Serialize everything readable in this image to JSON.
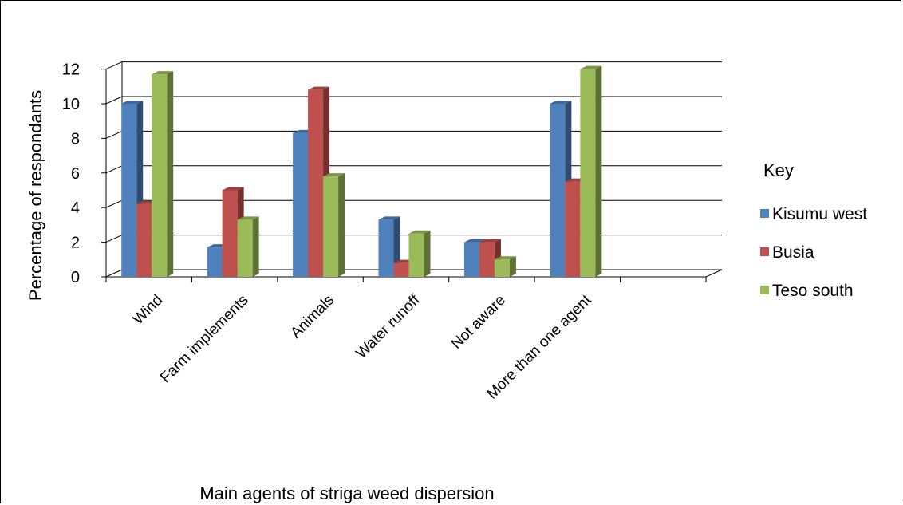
{
  "chart_data": {
    "type": "bar",
    "title": "",
    "xlabel": "Main agents of striga weed dispersion",
    "ylabel": "Percentage of respondants",
    "ylim": [
      0,
      12
    ],
    "yticks": [
      0,
      2,
      4,
      6,
      8,
      10,
      12
    ],
    "grid": true,
    "legend_title": "Key",
    "legend_position": "right",
    "categories": [
      "Wind",
      "Farm implements",
      "Animals",
      "Water runoff",
      "Not aware",
      "More than one agent"
    ],
    "series": [
      {
        "name": "Kisumu west",
        "color": "#4f81bd",
        "values": [
          10,
          1.7,
          8.3,
          3.3,
          2,
          10
        ]
      },
      {
        "name": "Busia",
        "color": "#c0504d",
        "values": [
          4.2,
          5,
          10.8,
          0.8,
          2,
          5.5
        ]
      },
      {
        "name": "Teso south",
        "color": "#9bbb59",
        "values": [
          11.7,
          3.3,
          5.8,
          2.5,
          1,
          12
        ]
      }
    ]
  }
}
